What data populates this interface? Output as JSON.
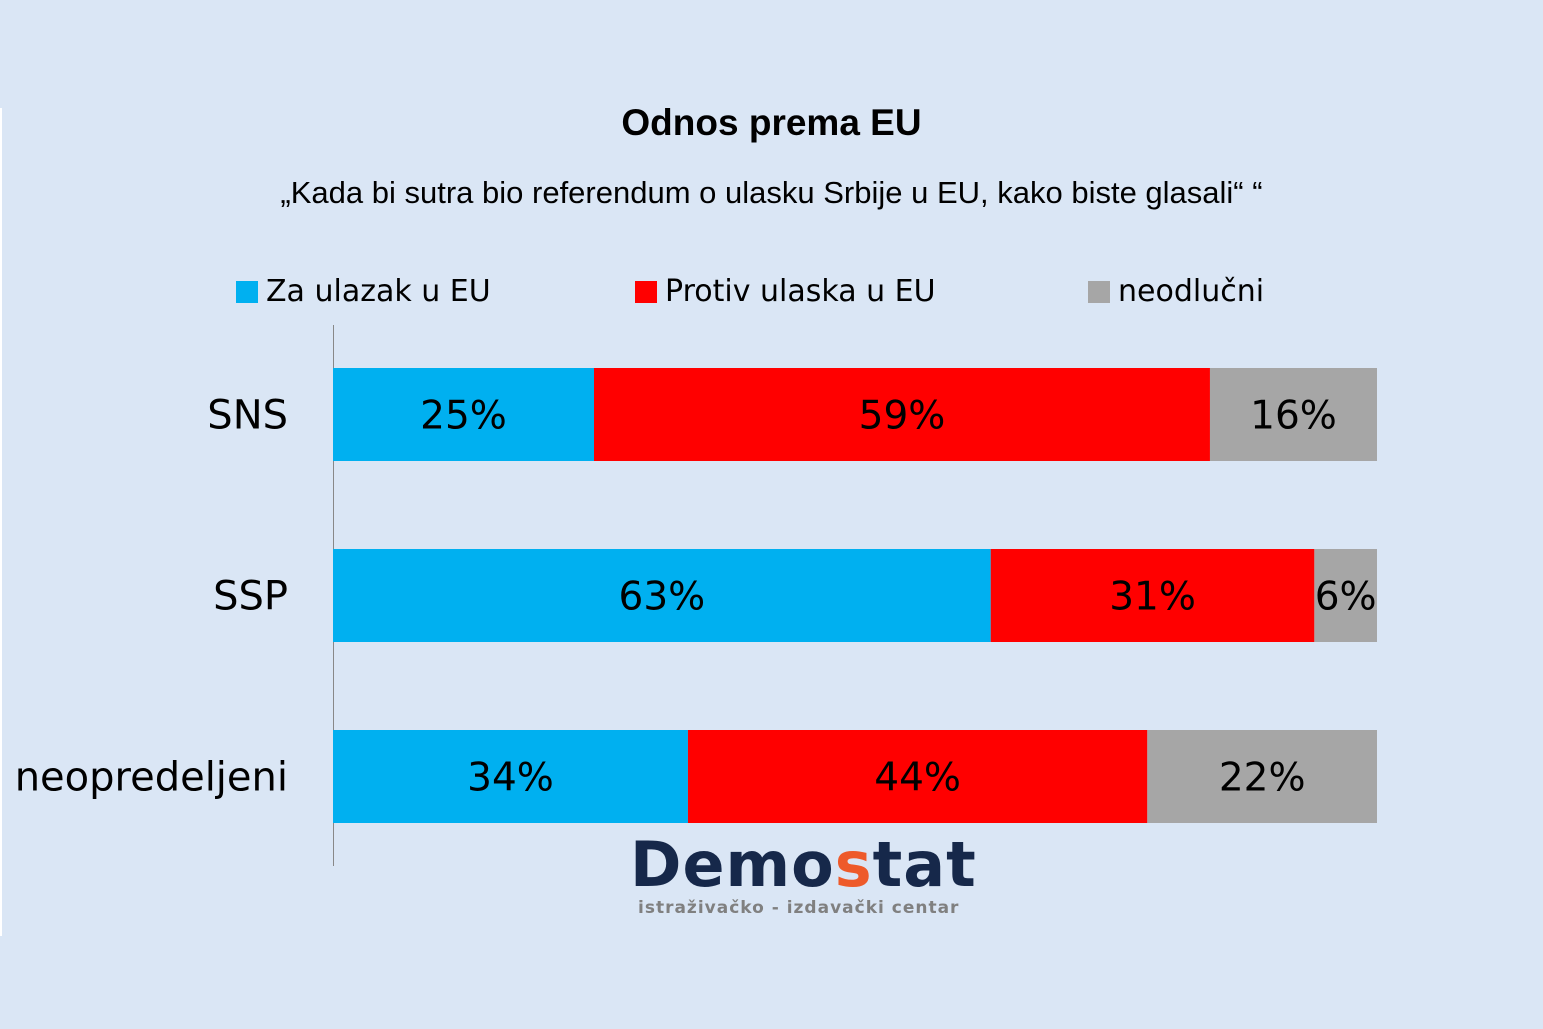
{
  "chart_data": {
    "type": "bar",
    "orientation": "horizontal-stacked-100",
    "title": "Odnos prema EU",
    "subtitle": "„Kada bi sutra bio referendum o ulasku Srbije u EU, kako biste glasali“ “",
    "categories": [
      "SNS",
      "SSP",
      "neopredeljeni"
    ],
    "series": [
      {
        "name": "Za ulazak u EU",
        "color": "#00b0f0",
        "values": [
          25,
          63,
          34
        ]
      },
      {
        "name": "Protiv ulaska u EU",
        "color": "#ff0000",
        "values": [
          59,
          31,
          44
        ]
      },
      {
        "name": "neodlučni",
        "color": "#a6a6a6",
        "values": [
          16,
          6,
          22
        ]
      }
    ],
    "xlim": [
      0,
      100
    ],
    "legend": "top",
    "grid": false
  },
  "logo": {
    "name_a": "Demo",
    "name_b": "s",
    "name_c": "tat",
    "tagline": "istraživačko - izdavački  centar"
  }
}
